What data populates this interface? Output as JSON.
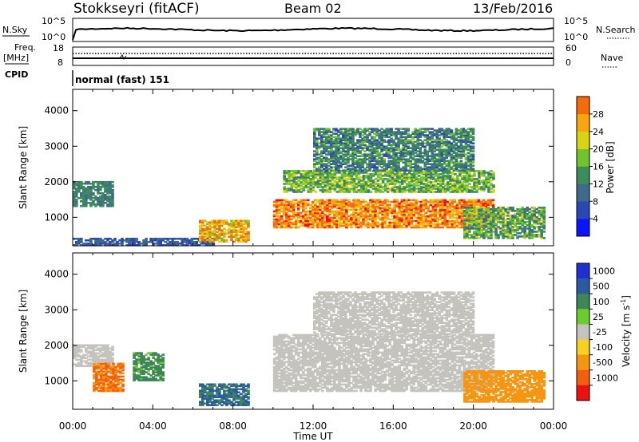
{
  "header": {
    "station": "Stokkseyri (fitACF)",
    "beam": "Beam 02",
    "date": "13/Feb/2016"
  },
  "strip_panels": {
    "nsky": {
      "left_label": "N.Sky",
      "right_label": "N.Search",
      "left_ticks": [
        "10^5",
        "10^0"
      ],
      "right_ticks": [
        "10^5",
        "10^0"
      ]
    },
    "freq": {
      "left_label_1": "Freq.",
      "left_label_2": "[MHz]",
      "right_label": "Nave",
      "left_ticks": [
        "18",
        "8"
      ],
      "right_ticks": [
        "60",
        "0"
      ]
    },
    "cpid": {
      "left_label": "CPID",
      "value": "normal (fast) 151"
    }
  },
  "colors": {
    "power": [
      "#0a14ff",
      "#2b47b5",
      "#3f6a89",
      "#3c8d5b",
      "#6fc430",
      "#d9d314",
      "#f7a60e",
      "#f56b0a",
      "#ee0f0f"
    ],
    "velocity": [
      "#1f2fd0",
      "#2c5aa0",
      "#3d8756",
      "#6ccc2e",
      "#c4c3bd",
      "#f7d020",
      "#f59612",
      "#f55e0c",
      "#ec1010"
    ],
    "ground_scatter": "#c0c0bc"
  },
  "chart_data": [
    {
      "type": "heatmap",
      "id": "power",
      "ylabel": "Slant Range [km]",
      "xlabel": "",
      "xlim_hours": [
        0,
        24
      ],
      "ylim": [
        200,
        4600
      ],
      "yticks": [
        "1000",
        "2000",
        "3000",
        "4000"
      ],
      "xticks": [
        "00:00",
        "04:00",
        "08:00",
        "12:00",
        "16:00",
        "20:00",
        "00:00"
      ],
      "colorbar": {
        "label": "Power [dB]",
        "ticks": [
          "4",
          "8",
          "12",
          "16",
          "20",
          "24",
          "28"
        ]
      },
      "echo_regions_approx": [
        {
          "t": [
            0.0,
            2.0
          ],
          "range_km": [
            1300,
            2000
          ],
          "power_db": [
            8,
            14
          ]
        },
        {
          "t": [
            0.0,
            7.0
          ],
          "range_km": [
            200,
            400
          ],
          "power_db": [
            4,
            10
          ]
        },
        {
          "t": [
            6.3,
            8.8
          ],
          "range_km": [
            300,
            900
          ],
          "power_db": [
            16,
            28
          ]
        },
        {
          "t": [
            10.0,
            21.0
          ],
          "range_km": [
            700,
            1500
          ],
          "power_db": [
            20,
            30
          ]
        },
        {
          "t": [
            10.5,
            21.0
          ],
          "range_km": [
            1700,
            2300
          ],
          "power_db": [
            10,
            20
          ]
        },
        {
          "t": [
            12.0,
            20.0
          ],
          "range_km": [
            2300,
            3500
          ],
          "power_db": [
            6,
            16
          ]
        },
        {
          "t": [
            19.5,
            23.5
          ],
          "range_km": [
            400,
            1300
          ],
          "power_db": [
            8,
            20
          ]
        }
      ]
    },
    {
      "type": "heatmap",
      "id": "velocity",
      "ylabel": "Slant Range [km]",
      "xlabel": "Time UT",
      "xlim_hours": [
        0,
        24
      ],
      "ylim": [
        200,
        4600
      ],
      "yticks": [
        "1000",
        "2000",
        "3000",
        "4000"
      ],
      "xticks": [
        "00:00",
        "04:00",
        "08:00",
        "12:00",
        "16:00",
        "20:00",
        "00:00"
      ],
      "colorbar": {
        "label": "Velocity [m s^-1]",
        "ticks": [
          "1000",
          "500",
          "100",
          "25",
          "-25",
          "-100",
          "-500",
          "-1000"
        ]
      },
      "echo_regions_approx": [
        {
          "t": [
            0.0,
            2.0
          ],
          "range_km": [
            1400,
            2000
          ],
          "velocity": [
            -25,
            25
          ]
        },
        {
          "t": [
            1.0,
            2.5
          ],
          "range_km": [
            700,
            1500
          ],
          "velocity": [
            -1000,
            -100
          ]
        },
        {
          "t": [
            3.0,
            4.5
          ],
          "range_km": [
            1000,
            1800
          ],
          "velocity": [
            25,
            500
          ]
        },
        {
          "t": [
            6.3,
            8.8
          ],
          "range_km": [
            300,
            900
          ],
          "velocity": [
            100,
            1000
          ]
        },
        {
          "t": [
            10.0,
            21.0
          ],
          "range_km": [
            700,
            2300
          ],
          "velocity": [
            -25,
            25
          ]
        },
        {
          "t": [
            12.0,
            20.0
          ],
          "range_km": [
            2300,
            3500
          ],
          "velocity": [
            -25,
            25
          ]
        },
        {
          "t": [
            19.5,
            23.5
          ],
          "range_km": [
            400,
            1300
          ],
          "velocity": [
            -500,
            -100
          ]
        }
      ]
    }
  ]
}
